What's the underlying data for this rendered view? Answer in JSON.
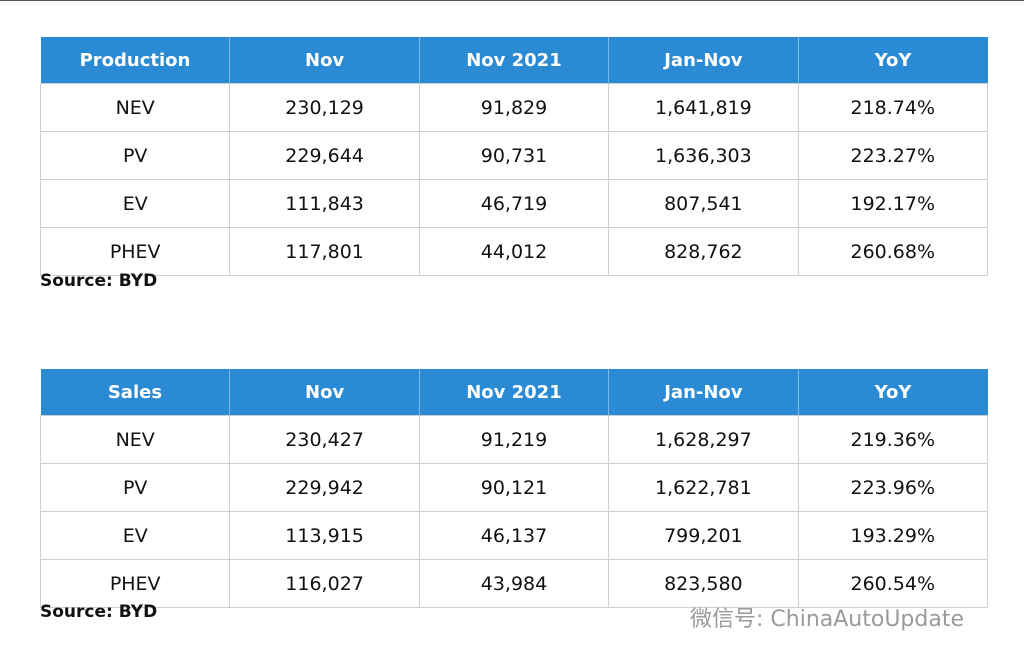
{
  "tables": [
    {
      "header": [
        "Production",
        "Nov",
        "Nov 2021",
        "Jan-Nov",
        "YoY"
      ],
      "rows": [
        [
          "NEV",
          "230,129",
          "91,829",
          "1,641,819",
          "218.74%"
        ],
        [
          "PV",
          "229,644",
          "90,731",
          "1,636,303",
          "223.27%"
        ],
        [
          "EV",
          "111,843",
          "46,719",
          "807,541",
          "192.17%"
        ],
        [
          "PHEV",
          "117,801",
          "44,012",
          "828,762",
          "260.68%"
        ]
      ],
      "source": "Source:  BYD"
    },
    {
      "header": [
        "Sales",
        "Nov",
        "Nov 2021",
        "Jan-Nov",
        "YoY"
      ],
      "rows": [
        [
          "NEV",
          "230,427",
          "91,219",
          "1,628,297",
          "219.36%"
        ],
        [
          "PV",
          "229,942",
          "90,121",
          "1,622,781",
          "223.96%"
        ],
        [
          "EV",
          "113,915",
          "46,137",
          "799,201",
          "193.29%"
        ],
        [
          "PHEV",
          "116,027",
          "43,984",
          "823,580",
          "260.54%"
        ]
      ],
      "source": "Source:  BYD"
    }
  ],
  "watermark": "微信号: ChinaAutoUpdate"
}
